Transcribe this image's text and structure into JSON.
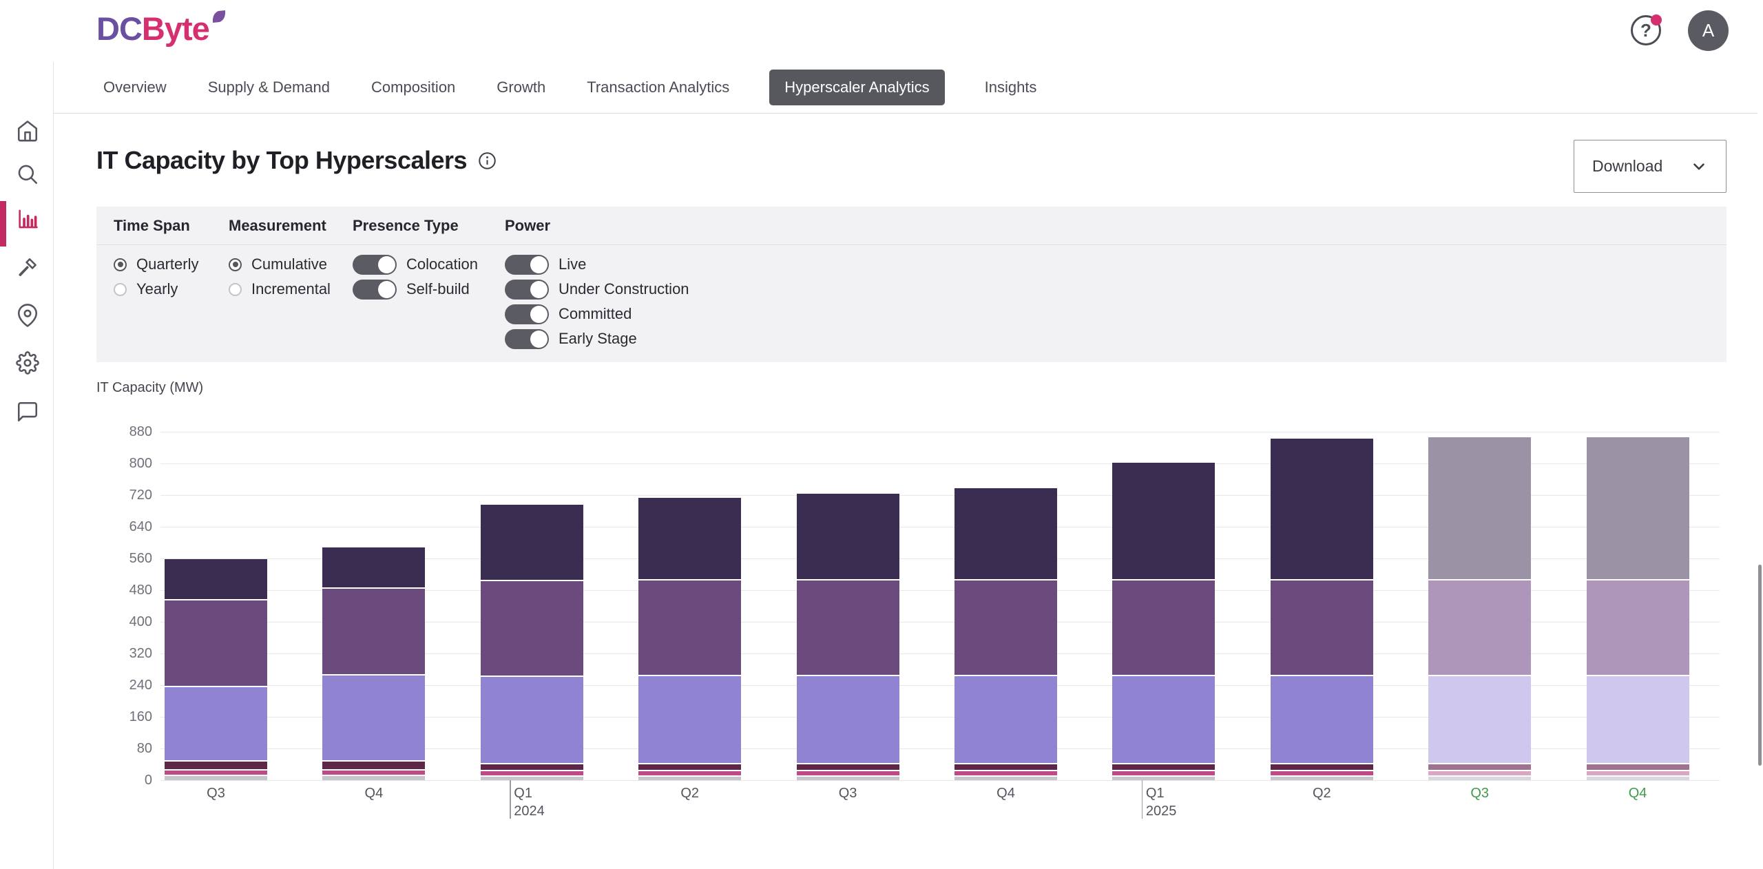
{
  "header": {
    "logo_part1": "DC",
    "logo_part2": "Byte",
    "help_label": "?",
    "avatar_initial": "A"
  },
  "tabs": [
    {
      "label": "Overview",
      "selected": false
    },
    {
      "label": "Supply & Demand",
      "selected": false
    },
    {
      "label": "Composition",
      "selected": false
    },
    {
      "label": "Growth",
      "selected": false
    },
    {
      "label": "Transaction Analytics",
      "selected": false
    },
    {
      "label": "Hyperscaler Analytics",
      "selected": true
    },
    {
      "label": "Insights",
      "selected": false
    }
  ],
  "sidebar": {
    "items": [
      {
        "icon": "home-icon",
        "active": false
      },
      {
        "icon": "search-icon",
        "active": false
      },
      {
        "icon": "bar-chart-icon",
        "active": true
      },
      {
        "icon": "hammer-icon",
        "active": false
      },
      {
        "icon": "map-pin-icon",
        "active": false
      },
      {
        "icon": "gear-icon",
        "active": false
      },
      {
        "icon": "chat-icon",
        "active": false
      }
    ]
  },
  "page": {
    "title": "IT Capacity by Top Hyperscalers",
    "download_label": "Download"
  },
  "filters": {
    "groups": [
      {
        "label": "Time Span",
        "type": "radio",
        "options": [
          {
            "label": "Quarterly",
            "on": true
          },
          {
            "label": "Yearly",
            "on": false
          }
        ]
      },
      {
        "label": "Measurement",
        "type": "radio",
        "options": [
          {
            "label": "Cumulative",
            "on": true
          },
          {
            "label": "Incremental",
            "on": false
          }
        ]
      },
      {
        "label": "Presence Type",
        "type": "toggle",
        "options": [
          {
            "label": "Colocation",
            "on": true
          },
          {
            "label": "Self-build",
            "on": true
          }
        ]
      },
      {
        "label": "Power",
        "type": "toggle",
        "options": [
          {
            "label": "Live",
            "on": true
          },
          {
            "label": "Under Construction",
            "on": true
          },
          {
            "label": "Committed",
            "on": true
          },
          {
            "label": "Early Stage",
            "on": true
          }
        ]
      }
    ]
  },
  "chart_data": {
    "type": "bar",
    "stacked": true,
    "title": "IT Capacity by Top Hyperscalers",
    "ylabel": "IT Capacity (MW)",
    "ylim": [
      0,
      880
    ],
    "ytick_step": 80,
    "grid": true,
    "legend": "none",
    "categories": [
      "Q3",
      "Q4",
      "Q1",
      "Q2",
      "Q3",
      "Q4",
      "Q1",
      "Q2",
      "Q3",
      "Q4"
    ],
    "year_markers": [
      {
        "index": 2,
        "label": "2024"
      },
      {
        "index": 6,
        "label": "2025"
      }
    ],
    "forecast_indices": [
      8,
      9
    ],
    "series": [
      {
        "name": "segment-gray-bottom",
        "color": "#c7c4cc",
        "forecast_color": "#d9d6dd",
        "values": [
          10,
          10,
          9,
          9,
          9,
          9,
          9,
          9,
          9,
          9
        ]
      },
      {
        "name": "segment-pink",
        "color": "#bf4a86",
        "forecast_color": "#d9a6c3",
        "values": [
          15,
          15,
          14,
          14,
          14,
          14,
          14,
          14,
          14,
          14
        ]
      },
      {
        "name": "segment-maroon",
        "color": "#5f2747",
        "forecast_color": "#9f7390",
        "values": [
          22,
          22,
          17,
          17,
          17,
          17,
          17,
          17,
          17,
          17
        ]
      },
      {
        "name": "segment-light-purple",
        "color": "#9083d1",
        "forecast_color": "#cfc7ed",
        "values": [
          188,
          218,
          221,
          223,
          223,
          223,
          223,
          223,
          223,
          223
        ]
      },
      {
        "name": "segment-medium-purple",
        "color": "#6b4a7e",
        "forecast_color": "#ad96ba",
        "values": [
          219,
          219,
          241,
          241,
          241,
          241,
          241,
          241,
          241,
          241
        ]
      },
      {
        "name": "segment-dark-purple",
        "color": "#3b2c52",
        "forecast_color": "#9b92a6",
        "values": [
          105,
          103,
          193,
          209,
          220,
          233,
          298,
          359,
          362,
          362
        ]
      }
    ],
    "xtick_color_forecast": "#3f9b49"
  },
  "colors": {
    "accent_pink": "#c22a62",
    "logo_purple": "#6b4fa1",
    "logo_pink": "#d62f70",
    "tab_selected_bg": "#57575e",
    "filter_bg": "#f2f2f4",
    "toggle_on": "#5b5b63"
  }
}
